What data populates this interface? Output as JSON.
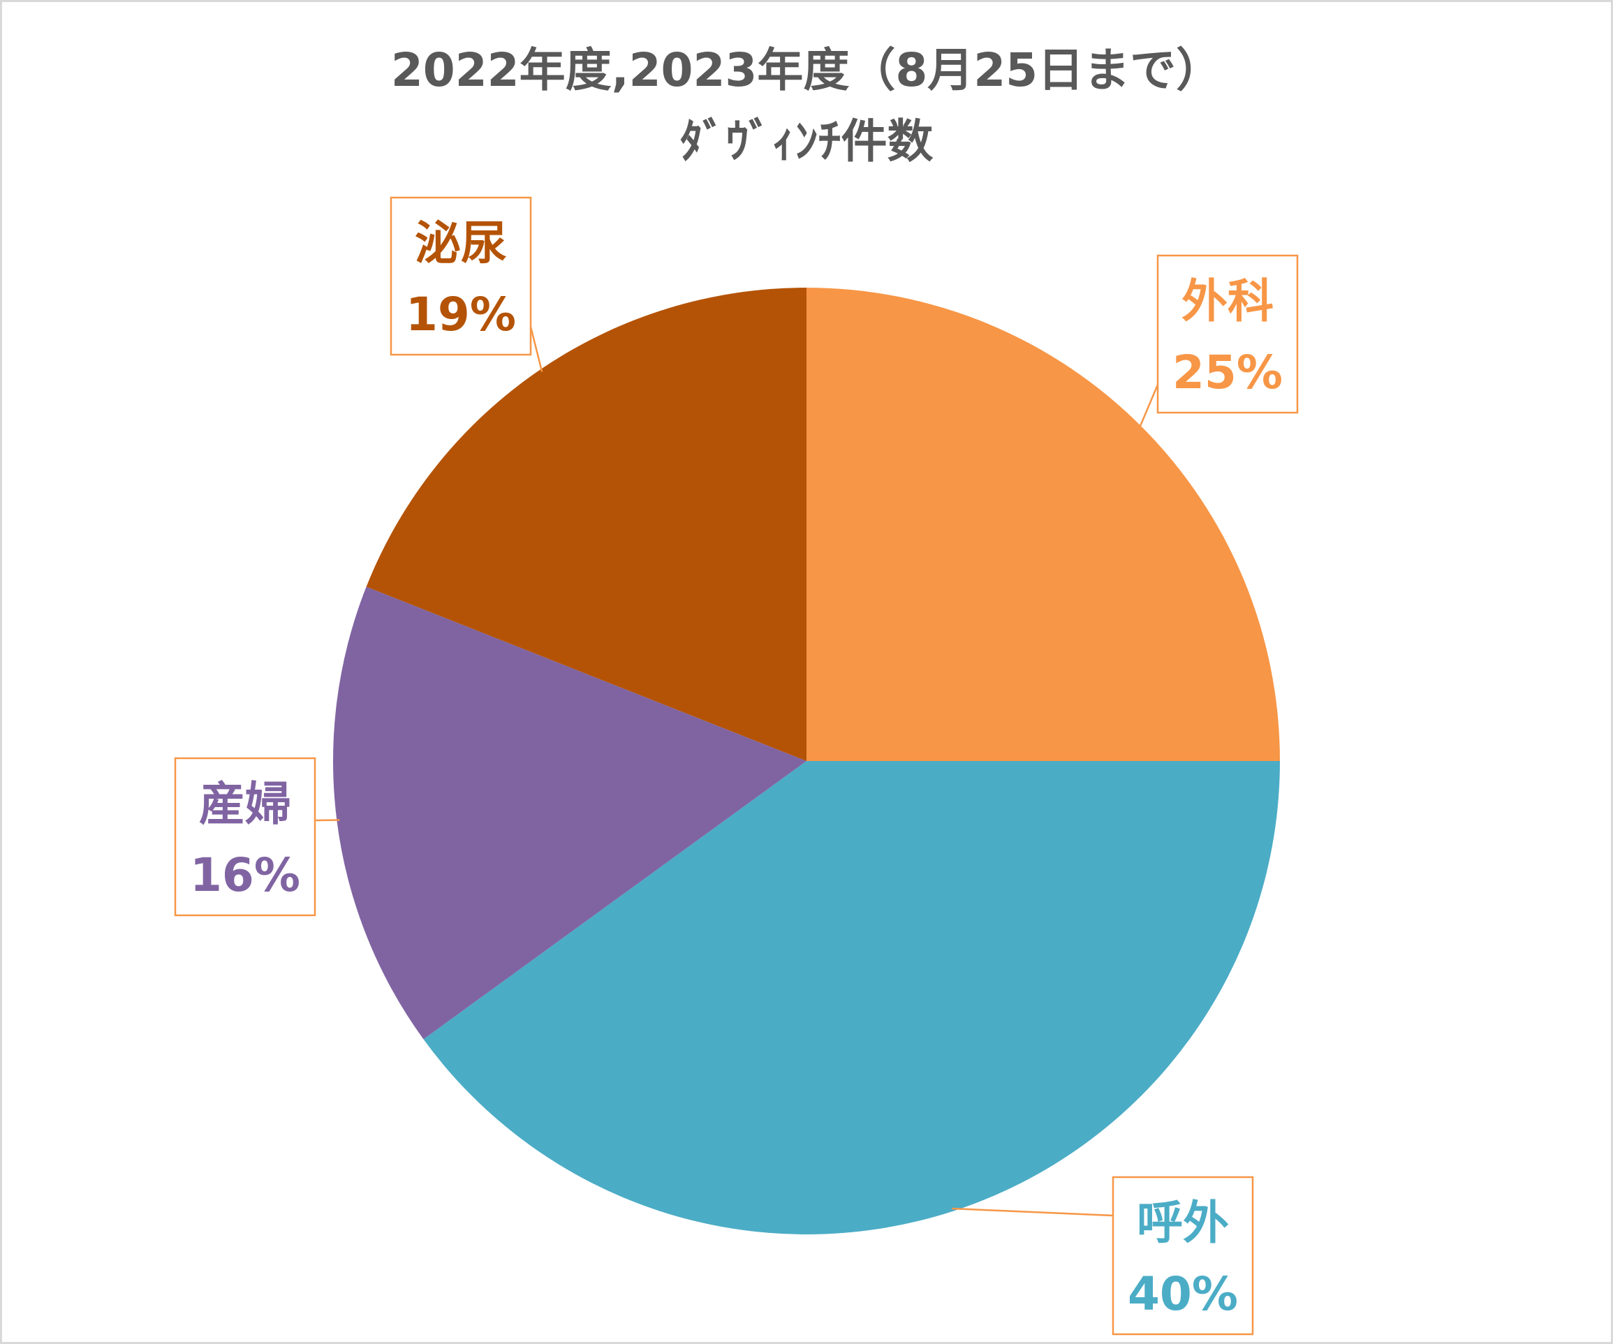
{
  "chart_data": {
    "type": "pie",
    "title": "2022年度,2023年度（8月25日まで）",
    "subtitle": "ﾀﾞｳﾞｨﾝﾁ件数",
    "slices": [
      {
        "category": "外科",
        "percent_label": "25%",
        "value": 25,
        "color": "#F79646"
      },
      {
        "category": "呼外",
        "percent_label": "40%",
        "value": 40,
        "color": "#4BACC6"
      },
      {
        "category": "産婦",
        "percent_label": "16%",
        "value": 16,
        "color": "#8064A2"
      },
      {
        "category": "泌尿",
        "percent_label": "19%",
        "value": 19,
        "color": "#B45305"
      }
    ],
    "start_angle_deg": 0,
    "direction": "clockwise",
    "legend": "none",
    "data_labels": "category-and-percent-callouts"
  }
}
